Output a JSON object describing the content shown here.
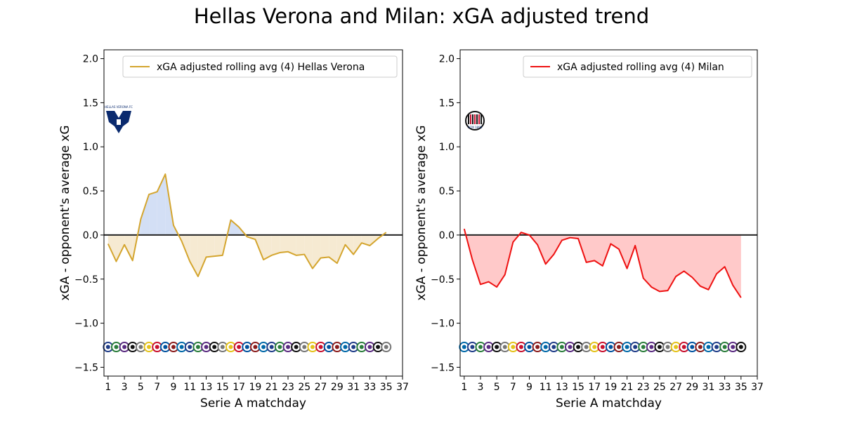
{
  "title": "Hellas Verona and Milan: xGA adjusted trend",
  "colors": {
    "verona_line": "#d4a52e",
    "verona_fill_neg": "#f6ead2",
    "verona_fill_pos": "#d3dff5",
    "milan_line": "#ee1111",
    "milan_fill": "#ffc9c9",
    "zero_line": "#222222",
    "verona_logo": "#0a2a6e",
    "milan_logo": "#c8102e"
  },
  "chart_data": [
    {
      "type": "line",
      "title": "",
      "xlabel": "Serie A matchday",
      "ylabel": "xGA - opponent's average xG",
      "xlim": [
        0.5,
        37
      ],
      "ylim": [
        -1.6,
        2.1
      ],
      "xticks": [
        1,
        3,
        5,
        7,
        9,
        11,
        13,
        15,
        17,
        19,
        21,
        23,
        25,
        27,
        29,
        31,
        33,
        35,
        37
      ],
      "yticks": [
        -1.5,
        -1.0,
        -0.5,
        0.0,
        0.5,
        1.0,
        1.5,
        2.0
      ],
      "ytick_labels": [
        "−1.5",
        "−1.0",
        "−0.5",
        "0.0",
        "0.5",
        "1.0",
        "1.5",
        "2.0"
      ],
      "legend": "xGA adjusted rolling avg (4) Hellas Verona",
      "legend_position": "top-right",
      "team_logo_text": "HELLAS VERONA FC",
      "series": [
        {
          "name": "xGA adjusted rolling avg (4) Hellas Verona",
          "x": [
            1,
            2,
            3,
            4,
            5,
            6,
            7,
            8,
            9,
            10,
            11,
            12,
            13,
            14,
            15,
            16,
            17,
            18,
            19,
            20,
            21,
            22,
            23,
            24,
            25,
            26,
            27,
            28,
            29,
            30,
            31,
            32,
            33,
            34,
            35
          ],
          "values": [
            -0.1,
            -0.3,
            -0.11,
            -0.29,
            0.18,
            0.46,
            0.49,
            0.69,
            0.11,
            -0.07,
            -0.3,
            -0.47,
            -0.25,
            -0.24,
            -0.23,
            0.17,
            0.09,
            -0.02,
            -0.05,
            -0.28,
            -0.23,
            -0.2,
            -0.19,
            -0.23,
            -0.22,
            -0.38,
            -0.26,
            -0.25,
            -0.32,
            -0.11,
            -0.22,
            -0.09,
            -0.12,
            -0.04,
            0.03
          ]
        }
      ]
    },
    {
      "type": "line",
      "title": "",
      "xlabel": "Serie A matchday",
      "ylabel": "xGA - opponent's average xG",
      "xlim": [
        0.5,
        37
      ],
      "ylim": [
        -1.6,
        2.1
      ],
      "xticks": [
        1,
        3,
        5,
        7,
        9,
        11,
        13,
        15,
        17,
        19,
        21,
        23,
        25,
        27,
        29,
        31,
        33,
        35,
        37
      ],
      "yticks": [
        -1.5,
        -1.0,
        -0.5,
        0.0,
        0.5,
        1.0,
        1.5,
        2.0
      ],
      "ytick_labels": [
        "−1.5",
        "−1.0",
        "−0.5",
        "0.0",
        "0.5",
        "1.0",
        "1.5",
        "2.0"
      ],
      "legend": "xGA adjusted rolling avg (4) Milan",
      "legend_position": "top-right",
      "team_logo_text": "ACM 1899",
      "series": [
        {
          "name": "xGA adjusted rolling avg (4) Milan",
          "x": [
            1,
            2,
            3,
            4,
            5,
            6,
            7,
            8,
            9,
            10,
            11,
            12,
            13,
            14,
            15,
            16,
            17,
            18,
            19,
            20,
            21,
            22,
            23,
            24,
            25,
            26,
            27,
            28,
            29,
            30,
            31,
            32,
            33,
            34,
            35
          ],
          "values": [
            0.07,
            -0.28,
            -0.56,
            -0.53,
            -0.59,
            -0.45,
            -0.08,
            0.03,
            0.0,
            -0.11,
            -0.33,
            -0.22,
            -0.06,
            -0.03,
            -0.04,
            -0.31,
            -0.29,
            -0.35,
            -0.1,
            -0.16,
            -0.38,
            -0.12,
            -0.49,
            -0.59,
            -0.64,
            -0.63,
            -0.47,
            -0.41,
            -0.48,
            -0.58,
            -0.62,
            -0.44,
            -0.36,
            -0.57,
            -0.71
          ]
        }
      ]
    }
  ]
}
